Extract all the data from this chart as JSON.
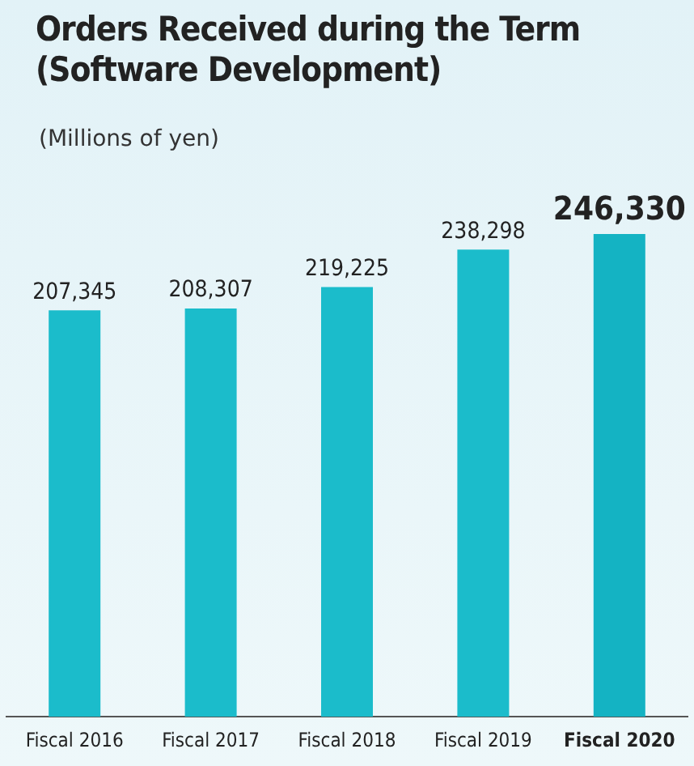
{
  "chart_data": {
    "type": "bar",
    "title": "Orders Received during the Term (Software Development)",
    "ylabel": "(Millions of yen)",
    "categories": [
      "Fiscal 2016",
      "Fiscal 2017",
      "Fiscal 2018",
      "Fiscal 2019",
      "Fiscal 2020"
    ],
    "values": [
      207345,
      208307,
      219225,
      238298,
      246330
    ],
    "colors": [
      "#1bbccb",
      "#1bbccb",
      "#1bbccb",
      "#1bbccb",
      "#14b3c3"
    ],
    "value_labels": [
      "207,345",
      "208,307",
      "219,225",
      "238,298",
      "246,330"
    ],
    "grid": false,
    "legend": false
  }
}
